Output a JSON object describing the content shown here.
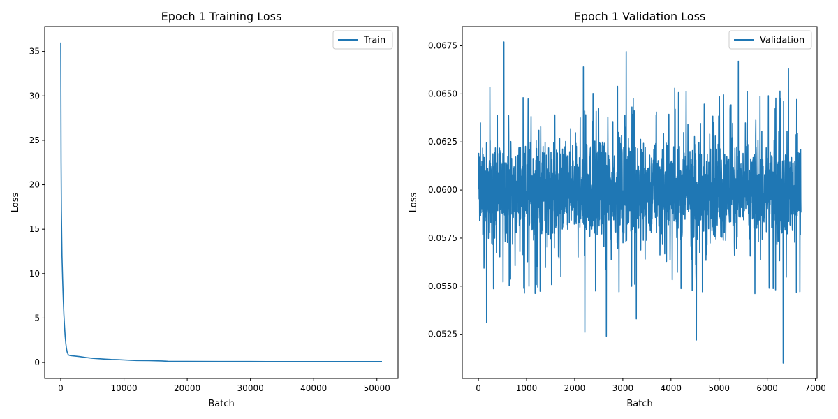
{
  "chart_data": [
    {
      "type": "line",
      "title": "Epoch 1 Training Loss",
      "xlabel": "Batch",
      "ylabel": "Loss",
      "xlim": [
        -2540,
        53340
      ],
      "ylim": [
        -1.8,
        37.8
      ],
      "xticks": [
        0,
        10000,
        20000,
        30000,
        40000,
        50000
      ],
      "xtick_labels": [
        "0",
        "10000",
        "20000",
        "30000",
        "40000",
        "50000"
      ],
      "yticks": [
        0,
        5,
        10,
        15,
        20,
        25,
        30,
        35
      ],
      "ytick_labels": [
        "0",
        "5",
        "10",
        "15",
        "20",
        "25",
        "30",
        "35"
      ],
      "grid": false,
      "legend_position": "upper-right",
      "series": [
        {
          "name": "Train",
          "color": "#1f77b4",
          "x": [
            0,
            30,
            60,
            100,
            150,
            200,
            300,
            400,
            500,
            600,
            700,
            800,
            900,
            1000,
            1200,
            1500,
            2000,
            3000,
            4000,
            5000,
            6000,
            7000,
            8000,
            9000,
            10000,
            11000,
            12000,
            14000,
            16000,
            17000,
            20000,
            25000,
            30000,
            35000,
            40000,
            45000,
            50800
          ],
          "y": [
            36.0,
            28.0,
            22.5,
            17.2,
            14.2,
            12.0,
            9.4,
            7.2,
            5.4,
            4.1,
            3.0,
            2.2,
            1.6,
            1.2,
            0.85,
            0.78,
            0.74,
            0.66,
            0.56,
            0.47,
            0.42,
            0.38,
            0.34,
            0.31,
            0.28,
            0.25,
            0.22,
            0.2,
            0.17,
            0.13,
            0.12,
            0.11,
            0.11,
            0.1,
            0.1,
            0.1,
            0.1
          ]
        }
      ]
    },
    {
      "type": "line",
      "title": "Epoch 1 Validation Loss",
      "xlabel": "Batch",
      "ylabel": "Loss",
      "xlim": [
        -335,
        7035
      ],
      "ylim": [
        0.0502,
        0.0685
      ],
      "xticks": [
        0,
        1000,
        2000,
        3000,
        4000,
        5000,
        6000,
        7000
      ],
      "xtick_labels": [
        "0",
        "1000",
        "2000",
        "3000",
        "4000",
        "5000",
        "6000",
        "7000"
      ],
      "yticks": [
        0.0525,
        0.055,
        0.0575,
        0.06,
        0.0625,
        0.065,
        0.0675
      ],
      "ytick_labels": [
        "0.0525",
        "0.0550",
        "0.0575",
        "0.0600",
        "0.0625",
        "0.0650",
        "0.0675"
      ],
      "grid": false,
      "legend_position": "upper-right",
      "series": [
        {
          "name": "Validation",
          "color": "#1f77b4",
          "x_range": [
            0,
            6700
          ],
          "mean": 0.06,
          "spread": 0.0025,
          "spikes": [
            {
              "x": 530,
              "y": 0.0677
            },
            {
              "x": 3070,
              "y": 0.0672
            },
            {
              "x": 5400,
              "y": 0.0667
            },
            {
              "x": 6440,
              "y": 0.0663
            },
            {
              "x": 2180,
              "y": 0.0664
            },
            {
              "x": 6330,
              "y": 0.051
            },
            {
              "x": 4530,
              "y": 0.0522
            },
            {
              "x": 2660,
              "y": 0.0524
            },
            {
              "x": 2210,
              "y": 0.0526
            },
            {
              "x": 170,
              "y": 0.0531
            },
            {
              "x": 3280,
              "y": 0.0533
            }
          ]
        }
      ]
    }
  ]
}
